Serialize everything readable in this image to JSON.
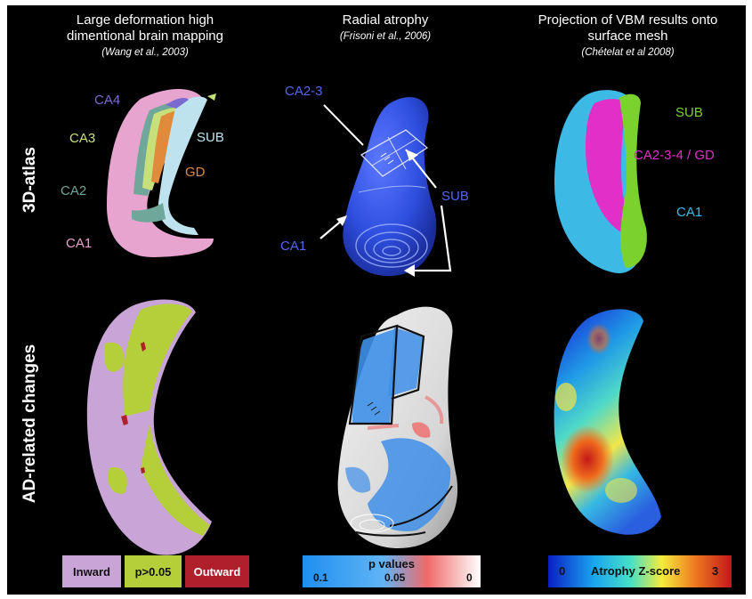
{
  "columns": [
    {
      "title_lines": [
        "Large deformation high",
        "dimentional brain mapping"
      ],
      "citation": "(Wang et al., 2003)"
    },
    {
      "title_lines": [
        "Radial atrophy"
      ],
      "citation": "(Frisoni et al., 2006)"
    },
    {
      "title_lines": [
        "Projection of VBM results onto",
        "surface mesh"
      ],
      "citation": "(Chételat et al 2008)"
    }
  ],
  "rows": {
    "top": "3D-atlas",
    "bottom": "AD-related changes"
  },
  "atlas1_labels": {
    "ca4": "CA4",
    "ca3": "CA3",
    "sub": "SUB",
    "gd": "GD",
    "ca2": "CA2",
    "ca1": "CA1"
  },
  "atlas2_labels": {
    "ca23": "CA2-3",
    "sub": "SUB",
    "ca1": "CA1"
  },
  "atlas3_labels": {
    "sub": "SUB",
    "ca234gd": "CA2-3-4 / GD",
    "ca1": "CA1"
  },
  "legend1": {
    "inward": "Inward",
    "nonsig": "p>0.05",
    "outward": "Outward"
  },
  "legend2": {
    "title": "p values",
    "t1": "0.1",
    "t2": "0.05",
    "t3": "0"
  },
  "legend3": {
    "min": "0",
    "label": "Atrophy Z-score",
    "max": "3"
  },
  "colors": {
    "ca4": "#7b6bd0",
    "ca3": "#c8e07a",
    "sub": "#bfe3ee",
    "gd": "#e08a3c",
    "ca2": "#6fa79a",
    "ca1": "#e7a4cf",
    "blue_label": "#5566ee",
    "green": "#7bd12d",
    "magenta": "#e030c8",
    "cyan": "#3db9e6",
    "inward": "#c9a4d6",
    "nonsig": "#b5cf3a",
    "outward": "#b01f2c"
  }
}
